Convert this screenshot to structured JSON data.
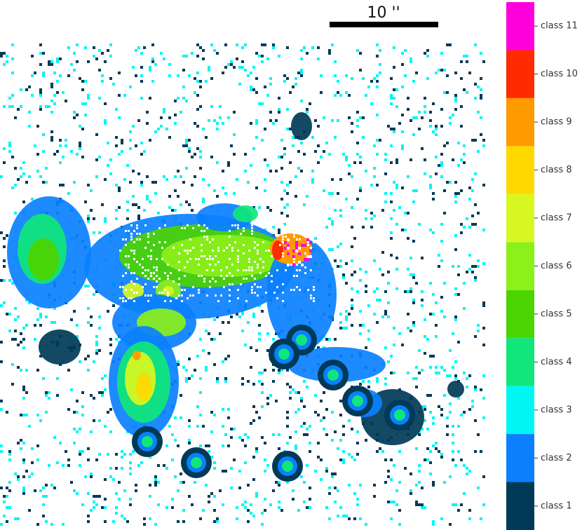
{
  "scale_bar": {
    "label": "10 ''"
  },
  "colorbar": {
    "classes": [
      {
        "label": "class 1",
        "color": "#003a57"
      },
      {
        "label": "class 2",
        "color": "#0a80ff"
      },
      {
        "label": "class 3",
        "color": "#00f5f5"
      },
      {
        "label": "class 4",
        "color": "#10e67a"
      },
      {
        "label": "class 5",
        "color": "#4cd400"
      },
      {
        "label": "class 6",
        "color": "#8cf01a"
      },
      {
        "label": "class 7",
        "color": "#d8f720"
      },
      {
        "label": "class 8",
        "color": "#ffd800"
      },
      {
        "label": "class 9",
        "color": "#ff9a00"
      },
      {
        "label": "class 10",
        "color": "#ff2a00"
      },
      {
        "label": "class 11",
        "color": "#ff00dd"
      }
    ]
  }
}
